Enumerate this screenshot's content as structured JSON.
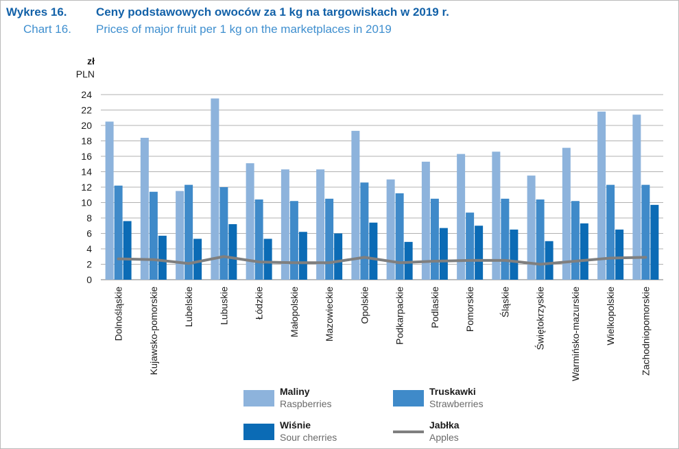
{
  "header": {
    "pl_number": "Wykres 16.",
    "pl_title": "Ceny podstawowych owoców za 1 kg na targowiskach w 2019 r.",
    "en_number": "Chart 16.",
    "en_title": "Prices of major fruit per 1 kg on the marketplaces in 2019"
  },
  "colors": {
    "maliny": "#8db3dc",
    "truskawki": "#3f8ac9",
    "wisnie": "#0b6bb5",
    "jablka": "#7f7f7f",
    "grid": "#b0b0b0",
    "title_pl": "#1261a8",
    "title_en": "#3f8fcf"
  },
  "chart_data": {
    "type": "bar",
    "ylabel_pl": "zł",
    "ylabel_en": "PLN",
    "ylim": [
      0,
      24
    ],
    "yticks": [
      "0",
      "2",
      "4",
      "6",
      "8",
      "10",
      "12",
      "14",
      "16",
      "18",
      "20",
      "22",
      "24"
    ],
    "grid": true,
    "categories": [
      "Dolnośląskie",
      "Kujawsko-pomorskie",
      "Lubelskie",
      "Lubuskie",
      "Łódzkie",
      "Małopolskie",
      "Mazowieckie",
      "Opolskie",
      "Podkarpackie",
      "Podlaskie",
      "Pomorskie",
      "Śląskie",
      "Świętokrzyskie",
      "Warmińsko-mazurskie",
      "Wielkopolskie",
      "Zachodniopomorskie"
    ],
    "series": [
      {
        "name": "Maliny",
        "name_en": "Raspberries",
        "kind": "bar",
        "values": [
          20.5,
          18.4,
          11.5,
          23.5,
          15.1,
          14.3,
          14.3,
          19.3,
          13.0,
          15.3,
          16.3,
          16.6,
          13.5,
          17.1,
          21.8,
          21.4
        ]
      },
      {
        "name": "Truskawki",
        "name_en": "Strawberries",
        "kind": "bar",
        "values": [
          12.2,
          11.4,
          12.3,
          12.0,
          10.4,
          10.2,
          10.5,
          12.6,
          11.2,
          10.5,
          8.7,
          10.5,
          10.4,
          10.2,
          12.3,
          12.3
        ]
      },
      {
        "name": "Wiśnie",
        "name_en": "Sour cherries",
        "kind": "bar",
        "values": [
          7.6,
          5.7,
          5.3,
          7.2,
          5.3,
          6.2,
          6.0,
          7.4,
          4.9,
          6.7,
          7.0,
          6.5,
          5.0,
          7.3,
          6.5,
          9.7
        ]
      },
      {
        "name": "Jabłka",
        "name_en": "Apples",
        "kind": "line",
        "values": [
          2.7,
          2.6,
          2.1,
          3.0,
          2.3,
          2.2,
          2.2,
          2.9,
          2.2,
          2.4,
          2.5,
          2.5,
          2.0,
          2.4,
          2.8,
          2.9
        ]
      }
    ],
    "legend_position": "bottom"
  }
}
